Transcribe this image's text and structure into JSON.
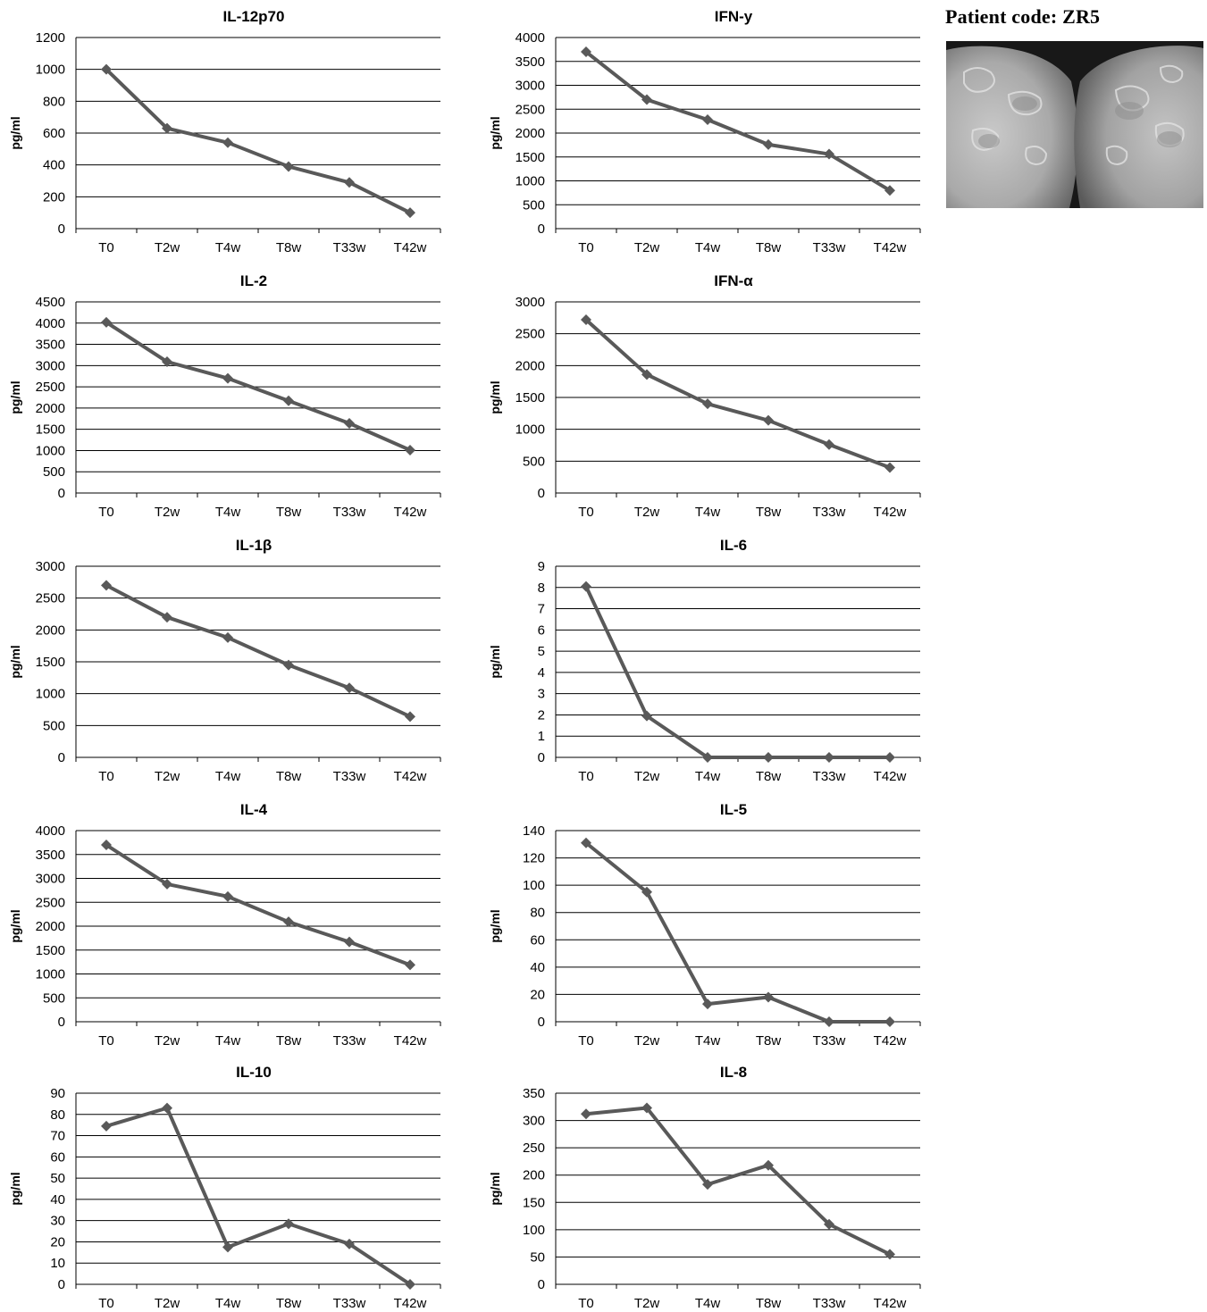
{
  "patient": {
    "code_label": "Patient code: ZR5",
    "photo": "clinical-photo-thighs-with-skin-lesions"
  },
  "colors": {
    "series": "#595959",
    "grid": "#000000"
  },
  "chart_data": [
    {
      "type": "line",
      "title": "IL-12p70",
      "ylabel": "pg/ml",
      "xlabel": "",
      "categories": [
        "T0",
        "T2w",
        "T4w",
        "T8w",
        "T33w",
        "T42w"
      ],
      "values": [
        1000,
        630,
        540,
        390,
        290,
        100
      ],
      "ylim": [
        0,
        1200
      ],
      "yticks": [
        0,
        200,
        400,
        600,
        800,
        1000,
        1200
      ],
      "grid": true,
      "legend": "none"
    },
    {
      "type": "line",
      "title": "IFN-y",
      "ylabel": "pg/ml",
      "xlabel": "",
      "categories": [
        "T0",
        "T2w",
        "T4w",
        "T8w",
        "T33w",
        "T42w"
      ],
      "values": [
        3700,
        2700,
        2280,
        1760,
        1560,
        800
      ],
      "ylim": [
        0,
        4000
      ],
      "yticks": [
        0,
        500,
        1000,
        1500,
        2000,
        2500,
        3000,
        3500,
        4000
      ],
      "grid": true,
      "legend": "none"
    },
    {
      "type": "line",
      "title": "IL-2",
      "ylabel": "pg/ml",
      "xlabel": "",
      "categories": [
        "T0",
        "T2w",
        "T4w",
        "T8w",
        "T33w",
        "T42w"
      ],
      "values": [
        4020,
        3090,
        2700,
        2170,
        1640,
        1010
      ],
      "ylim": [
        0,
        4500
      ],
      "yticks": [
        0,
        500,
        1000,
        1500,
        2000,
        2500,
        3000,
        3500,
        4000,
        4500
      ],
      "grid": true,
      "legend": "none"
    },
    {
      "type": "line",
      "title": "IFN-α",
      "ylabel": "pg/ml",
      "xlabel": "",
      "categories": [
        "T0",
        "T2w",
        "T4w",
        "T8w",
        "T33w",
        "T42w"
      ],
      "values": [
        2720,
        1860,
        1400,
        1140,
        760,
        400
      ],
      "ylim": [
        0,
        3000
      ],
      "yticks": [
        0,
        500,
        1000,
        1500,
        2000,
        2500,
        3000
      ],
      "grid": true,
      "legend": "none"
    },
    {
      "type": "line",
      "title": "IL-1β",
      "ylabel": "pg/ml",
      "xlabel": "",
      "categories": [
        "T0",
        "T2w",
        "T4w",
        "T8w",
        "T33w",
        "T42w"
      ],
      "values": [
        2700,
        2200,
        1880,
        1450,
        1090,
        640
      ],
      "ylim": [
        0,
        3000
      ],
      "yticks": [
        0,
        500,
        1000,
        1500,
        2000,
        2500,
        3000
      ],
      "grid": true,
      "legend": "none"
    },
    {
      "type": "line",
      "title": "IL-6",
      "ylabel": "pg/ml",
      "xlabel": "",
      "categories": [
        "T0",
        "T2w",
        "T4w",
        "T8w",
        "T33w",
        "T42w"
      ],
      "values": [
        8.05,
        1.95,
        0,
        0,
        0,
        0
      ],
      "ylim": [
        0,
        9
      ],
      "yticks": [
        0,
        1,
        2,
        3,
        4,
        5,
        6,
        7,
        8,
        9
      ],
      "grid": true,
      "legend": "none"
    },
    {
      "type": "line",
      "title": "IL-4",
      "ylabel": "pg/ml",
      "xlabel": "",
      "categories": [
        "T0",
        "T2w",
        "T4w",
        "T8w",
        "T33w",
        "T42w"
      ],
      "values": [
        3700,
        2880,
        2620,
        2090,
        1670,
        1190
      ],
      "ylim": [
        0,
        4000
      ],
      "yticks": [
        0,
        500,
        1000,
        1500,
        2000,
        2500,
        3000,
        3500,
        4000
      ],
      "grid": true,
      "legend": "none"
    },
    {
      "type": "line",
      "title": "IL-5",
      "ylabel": "pg/ml",
      "xlabel": "",
      "categories": [
        "T0",
        "T2w",
        "T4w",
        "T8w",
        "T33w",
        "T42w"
      ],
      "values": [
        131,
        95,
        13,
        18,
        0,
        0
      ],
      "ylim": [
        0,
        140
      ],
      "yticks": [
        0,
        20,
        40,
        60,
        80,
        100,
        120,
        140
      ],
      "grid": true,
      "legend": "none"
    },
    {
      "type": "line",
      "title": "IL-10",
      "ylabel": "pg/ml",
      "xlabel": "",
      "categories": [
        "T0",
        "T2w",
        "T4w",
        "T8w",
        "T33w",
        "T42w"
      ],
      "values": [
        74.5,
        83,
        17.5,
        28.5,
        19,
        0
      ],
      "ylim": [
        0,
        90
      ],
      "yticks": [
        0,
        10,
        20,
        30,
        40,
        50,
        60,
        70,
        80,
        90
      ],
      "grid": true,
      "legend": "none"
    },
    {
      "type": "line",
      "title": "IL-8",
      "ylabel": "pg/ml",
      "xlabel": "",
      "categories": [
        "T0",
        "T2w",
        "T4w",
        "T8w",
        "T33w",
        "T42w"
      ],
      "values": [
        312,
        323,
        183,
        218,
        110,
        55
      ],
      "ylim": [
        0,
        350
      ],
      "yticks": [
        0,
        50,
        100,
        150,
        200,
        250,
        300,
        350
      ],
      "grid": true,
      "legend": "none"
    }
  ]
}
